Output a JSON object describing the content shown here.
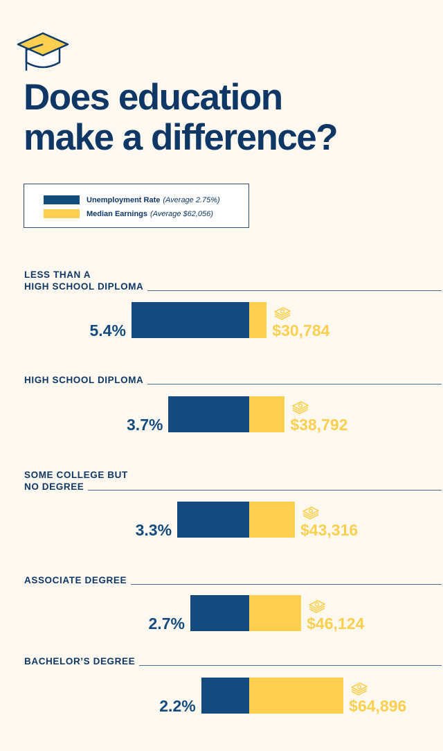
{
  "title": "Does education make a difference?",
  "title_lines": [
    "Does education",
    "make a difference?"
  ],
  "icons": {
    "header": "graduation-cap-icon",
    "earnings": "money-stack-icon"
  },
  "colors": {
    "unemployment": "#134b7e",
    "earnings": "#fdcf4f",
    "title": "#0f3765",
    "background": "#fdf9f1"
  },
  "legend": {
    "items": [
      {
        "label": "Unemployment Rate",
        "note": "(Average 2.75%)",
        "color": "#134b7e"
      },
      {
        "label": "Median Earnings",
        "note": "(Average $62,056)",
        "color": "#fdcf4f"
      }
    ]
  },
  "chart_data": {
    "type": "bar",
    "title": "Does education make a difference?",
    "orientation": "horizontal-diverging",
    "categories": [
      "LESS THAN A\nHIGH SCHOOL DIPLOMA",
      "HIGH SCHOOL DIPLOMA",
      "SOME COLLEGE BUT\nNO DEGREE",
      "ASSOCIATE DEGREE",
      "BACHELOR’S DEGREE"
    ],
    "series": [
      {
        "name": "Unemployment Rate",
        "average_label": "(Average 2.75%)",
        "average": 2.75,
        "unit": "%",
        "values": [
          5.4,
          3.7,
          3.3,
          2.7,
          2.2
        ],
        "labels": [
          "5.4%",
          "3.7%",
          "3.3%",
          "2.7%",
          "2.2%"
        ]
      },
      {
        "name": "Median Earnings",
        "average_label": "(Average $62,056)",
        "average": 62056,
        "unit": "$",
        "values": [
          30784,
          38792,
          43316,
          46124,
          64896
        ],
        "labels": [
          "$30,784",
          "$38,792",
          "$43,316",
          "$46,124",
          "$64,896"
        ]
      }
    ],
    "legend": "top-left",
    "grid": false
  }
}
